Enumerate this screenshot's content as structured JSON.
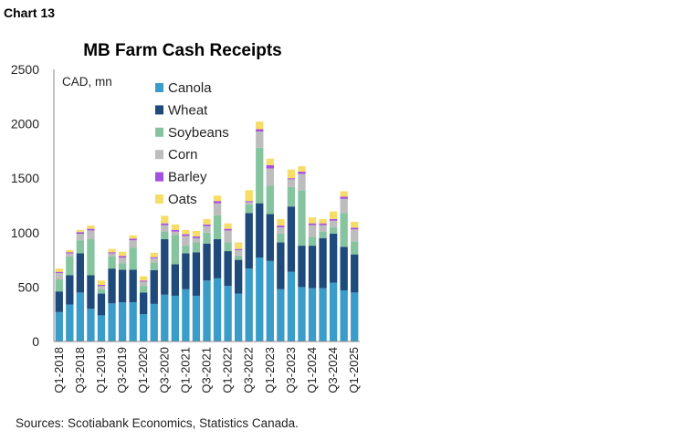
{
  "chart_label": "Chart 13",
  "source": "Sources: Scotiabank Economics, Statistics Canada.",
  "chart_data": {
    "type": "bar",
    "stacked": true,
    "title": "MB Farm Cash Receipts",
    "unit_label": "CAD, mn",
    "ylim": [
      0,
      2500
    ],
    "yticks": [
      0,
      500,
      1000,
      1500,
      2000,
      2500
    ],
    "legend_position": "top-left",
    "categories": [
      "Q1-2018",
      "Q2-2018",
      "Q3-2018",
      "Q4-2018",
      "Q1-2019",
      "Q2-2019",
      "Q3-2019",
      "Q4-2019",
      "Q1-2020",
      "Q2-2020",
      "Q3-2020",
      "Q4-2020",
      "Q1-2021",
      "Q2-2021",
      "Q3-2021",
      "Q4-2021",
      "Q1-2022",
      "Q2-2022",
      "Q3-2022",
      "Q4-2022",
      "Q1-2023",
      "Q2-2023",
      "Q3-2023",
      "Q4-2023",
      "Q1-2024",
      "Q2-2024",
      "Q3-2024",
      "Q4-2024",
      "Q1-2025"
    ],
    "xtick_labels": [
      "Q1-2018",
      "Q3-2018",
      "Q1-2019",
      "Q3-2019",
      "Q1-2020",
      "Q3-2020",
      "Q1-2021",
      "Q3-2021",
      "Q1-2022",
      "Q3-2022",
      "Q1-2023",
      "Q3-2023",
      "Q1-2024",
      "Q3-2024",
      "Q1-2025"
    ],
    "series": [
      {
        "name": "Canola",
        "color": "#3a9cc9",
        "values": [
          270,
          340,
          450,
          300,
          240,
          350,
          360,
          360,
          250,
          345,
          430,
          420,
          480,
          420,
          560,
          580,
          510,
          440,
          670,
          770,
          740,
          480,
          640,
          500,
          490,
          490,
          540,
          470,
          450
        ]
      },
      {
        "name": "Wheat",
        "color": "#1e4a7c",
        "values": [
          190,
          270,
          360,
          310,
          200,
          320,
          300,
          300,
          200,
          310,
          510,
          290,
          330,
          400,
          340,
          360,
          320,
          310,
          510,
          500,
          430,
          430,
          600,
          380,
          390,
          460,
          450,
          400,
          350
        ]
      },
      {
        "name": "Soybeans",
        "color": "#86c4a0",
        "values": [
          110,
          170,
          120,
          330,
          40,
          110,
          60,
          200,
          60,
          70,
          70,
          270,
          70,
          90,
          100,
          220,
          80,
          40,
          80,
          510,
          260,
          80,
          180,
          510,
          80,
          60,
          60,
          310,
          120
        ]
      },
      {
        "name": "Corn",
        "color": "#bdbdbd",
        "values": [
          60,
          30,
          60,
          80,
          30,
          30,
          50,
          70,
          40,
          40,
          60,
          30,
          90,
          40,
          60,
          110,
          110,
          50,
          20,
          150,
          160,
          60,
          70,
          150,
          110,
          60,
          60,
          130,
          110
        ]
      },
      {
        "name": "Barley",
        "color": "#a64ee0",
        "values": [
          10,
          10,
          15,
          15,
          10,
          10,
          15,
          15,
          10,
          10,
          15,
          15,
          15,
          15,
          15,
          20,
          15,
          10,
          10,
          20,
          30,
          15,
          10,
          20,
          15,
          15,
          15,
          20,
          15
        ]
      },
      {
        "name": "Oats",
        "color": "#f6dd68",
        "values": [
          30,
          20,
          20,
          30,
          40,
          30,
          40,
          30,
          40,
          40,
          70,
          50,
          40,
          50,
          50,
          50,
          50,
          60,
          100,
          70,
          60,
          60,
          80,
          50,
          55,
          40,
          70,
          50,
          55
        ]
      }
    ]
  }
}
